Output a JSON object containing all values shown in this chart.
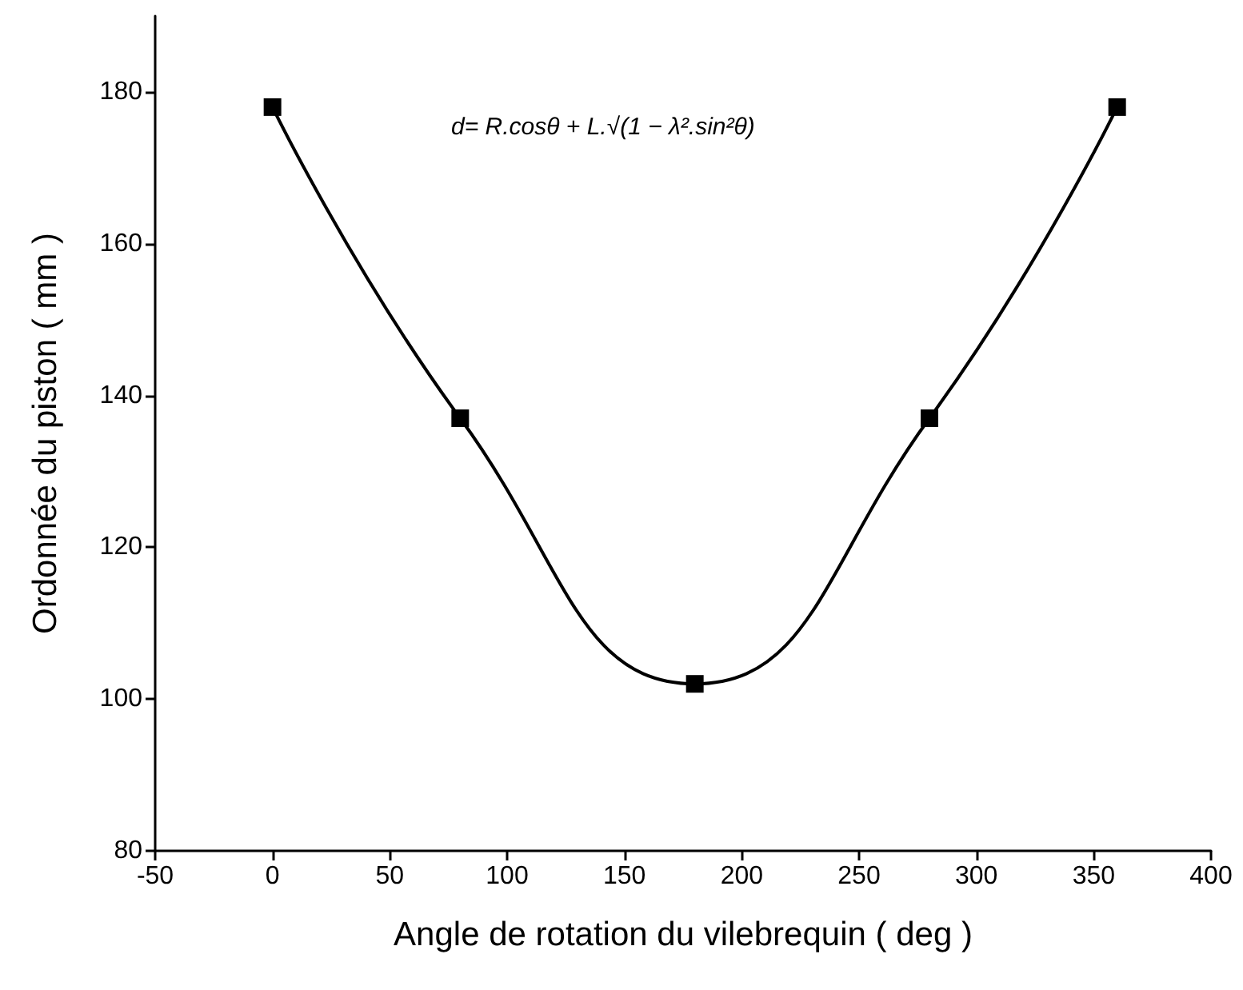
{
  "chart_data": {
    "type": "line",
    "xlabel": "Angle de rotation du vilebrequin ( deg )",
    "ylabel": "Ordonnée du piston ( mm )",
    "x": [
      0,
      80,
      180,
      280,
      360
    ],
    "series": [
      {
        "color": "#000000",
        "values": [
          178,
          137,
          102,
          137,
          178
        ]
      }
    ],
    "xlim": [
      -50,
      400
    ],
    "xticks": [
      -50,
      0,
      50,
      100,
      150,
      200,
      250,
      300,
      350,
      400
    ],
    "ylim": [
      80,
      190
    ],
    "yticks": [
      80,
      100,
      120,
      140,
      160,
      180
    ],
    "annotations": [
      "d= R.cosθ + L.√(1 − λ².sin²θ)"
    ],
    "marker": "square",
    "line_style": "solid"
  }
}
